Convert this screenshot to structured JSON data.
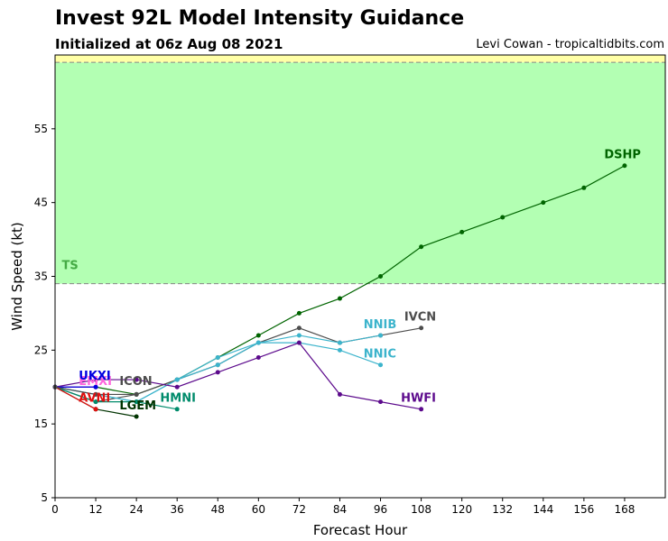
{
  "header": {
    "title": "Invest 92L Model Intensity Guidance",
    "subtitle": "Initialized at 06z Aug 08 2021",
    "credit": "Levi Cowan - tropicaltidbits.com"
  },
  "chart_data": {
    "type": "line",
    "xlabel": "Forecast Hour",
    "ylabel": "Wind Speed (kt)",
    "xlim": [
      0,
      180
    ],
    "ylim": [
      5,
      65
    ],
    "xticks": [
      0,
      12,
      24,
      36,
      48,
      60,
      72,
      84,
      96,
      108,
      120,
      132,
      144,
      156,
      168
    ],
    "yticks": [
      5,
      15,
      25,
      35,
      45,
      55
    ],
    "bands": [
      {
        "label": "TS",
        "from": 34,
        "to": 64,
        "color": "#b3ffb3"
      },
      {
        "label": "",
        "from": 64,
        "to": 65,
        "color": "#ffffa6"
      }
    ],
    "threshold_lines": [
      34,
      64
    ],
    "series": [
      {
        "name": "DSHP",
        "color": "#006400",
        "x": [
          0,
          12,
          24,
          36,
          48,
          60,
          72,
          84,
          96,
          108,
          120,
          132,
          144,
          156,
          168
        ],
        "y": [
          20,
          20,
          19,
          21,
          24,
          27,
          30,
          32,
          35,
          39,
          41,
          43,
          45,
          47,
          50
        ]
      },
      {
        "name": "IVCN",
        "color": "#4d4d4d",
        "x": [
          0,
          12,
          24,
          36,
          48,
          60,
          72,
          84,
          96,
          108
        ],
        "y": [
          20,
          18,
          19,
          21,
          23,
          26,
          28,
          26,
          27,
          28
        ]
      },
      {
        "name": "NNIB",
        "color": "#3cb4cc",
        "x": [
          0,
          12,
          24,
          36,
          48,
          60,
          72,
          84,
          96
        ],
        "y": [
          20,
          19,
          18,
          21,
          24,
          26,
          27,
          26,
          27
        ]
      },
      {
        "name": "NNIC",
        "color": "#3cb4cc",
        "x": [
          0,
          12,
          24,
          36,
          48,
          60,
          72,
          84,
          96
        ],
        "y": [
          20,
          19,
          18,
          21,
          23,
          26,
          26,
          25,
          23
        ]
      },
      {
        "name": "HWFI",
        "color": "#5c0a8c",
        "x": [
          0,
          12,
          24,
          36,
          48,
          60,
          72,
          84,
          96,
          108
        ],
        "y": [
          20,
          21,
          21,
          20,
          22,
          24,
          26,
          19,
          18,
          17
        ]
      },
      {
        "name": "HMNI",
        "color": "#008b6b",
        "x": [
          0,
          12,
          24,
          36
        ],
        "y": [
          20,
          18,
          18,
          17
        ]
      },
      {
        "name": "LGEM",
        "color": "#003300",
        "x": [
          0,
          12,
          24
        ],
        "y": [
          20,
          17,
          16
        ]
      },
      {
        "name": "AVNI",
        "color": "#e01010",
        "x": [
          0,
          12
        ],
        "y": [
          20,
          17
        ]
      },
      {
        "name": "EMXI",
        "color": "#ff66dd",
        "x": [
          0,
          12
        ],
        "y": [
          20,
          20
        ]
      },
      {
        "name": "UKXI",
        "color": "#0000e0",
        "x": [
          0,
          12
        ],
        "y": [
          20,
          20
        ]
      },
      {
        "name": "ICON",
        "color": "#4d4d4d",
        "x": [
          0,
          12,
          24
        ],
        "y": [
          20,
          19,
          19
        ]
      }
    ],
    "labels": [
      {
        "text": "DSHP",
        "x": 162,
        "y": 51,
        "color": "#006400"
      },
      {
        "text": "IVCN",
        "x": 103,
        "y": 29,
        "color": "#4d4d4d"
      },
      {
        "text": "NNIB",
        "x": 91,
        "y": 28,
        "color": "#3cb4cc"
      },
      {
        "text": "NNIC",
        "x": 91,
        "y": 24,
        "color": "#3cb4cc"
      },
      {
        "text": "HWFI",
        "x": 102,
        "y": 18,
        "color": "#5c0a8c"
      },
      {
        "text": "HMNI",
        "x": 31,
        "y": 18,
        "color": "#008b6b"
      },
      {
        "text": "LGEM",
        "x": 19,
        "y": 17,
        "color": "#003300"
      },
      {
        "text": "AVNI",
        "x": 7,
        "y": 18,
        "color": "#e01010"
      },
      {
        "text": "EMXI",
        "x": 7,
        "y": 20.3,
        "color": "#ff66dd"
      },
      {
        "text": "UKXI",
        "x": 7,
        "y": 21,
        "color": "#0000e0"
      },
      {
        "text": "ICON",
        "x": 19,
        "y": 20.3,
        "color": "#4d4d4d"
      },
      {
        "text": "TS",
        "x": 2,
        "y": 36,
        "color": "#44aa44"
      }
    ]
  }
}
